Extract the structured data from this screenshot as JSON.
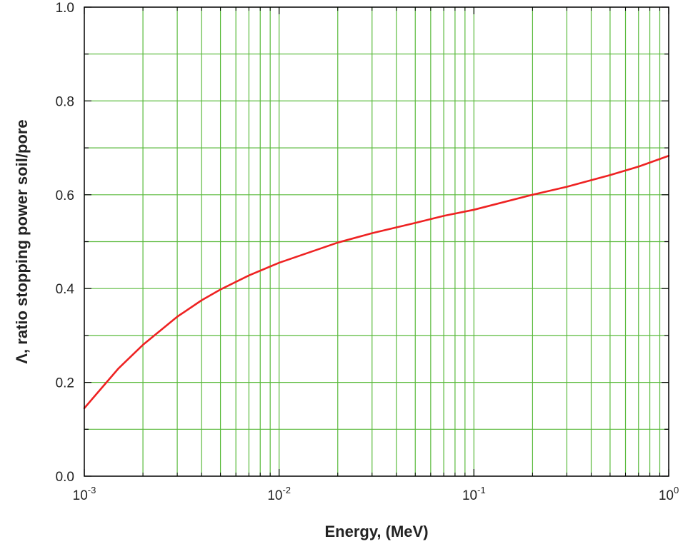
{
  "chart_data": {
    "type": "line",
    "xlabel": "Energy, (MeV)",
    "ylabel": "Λ, ratio stopping power soil/pore",
    "x_scale": "log",
    "xlim": [
      0.001,
      1
    ],
    "ylim": [
      0,
      1
    ],
    "x_ticks": [
      {
        "mantissa": "10",
        "exponent": "-3"
      },
      {
        "mantissa": "10",
        "exponent": "-2"
      },
      {
        "mantissa": "10",
        "exponent": "-1"
      },
      {
        "mantissa": "10",
        "exponent": "0"
      }
    ],
    "y_ticks": [
      "0.0",
      "0.2",
      "0.4",
      "0.6",
      "0.8",
      "1.0"
    ],
    "grid": true,
    "grid_color": "#5aba3c",
    "series": [
      {
        "color": "#ee2222",
        "x": [
          0.001,
          0.0015,
          0.002,
          0.003,
          0.004,
          0.005,
          0.007,
          0.01,
          0.02,
          0.03,
          0.05,
          0.07,
          0.1,
          0.2,
          0.3,
          0.5,
          0.7,
          1.0
        ],
        "y": [
          0.145,
          0.23,
          0.28,
          0.34,
          0.375,
          0.398,
          0.428,
          0.455,
          0.498,
          0.518,
          0.54,
          0.555,
          0.568,
          0.6,
          0.617,
          0.642,
          0.66,
          0.683
        ]
      }
    ]
  }
}
